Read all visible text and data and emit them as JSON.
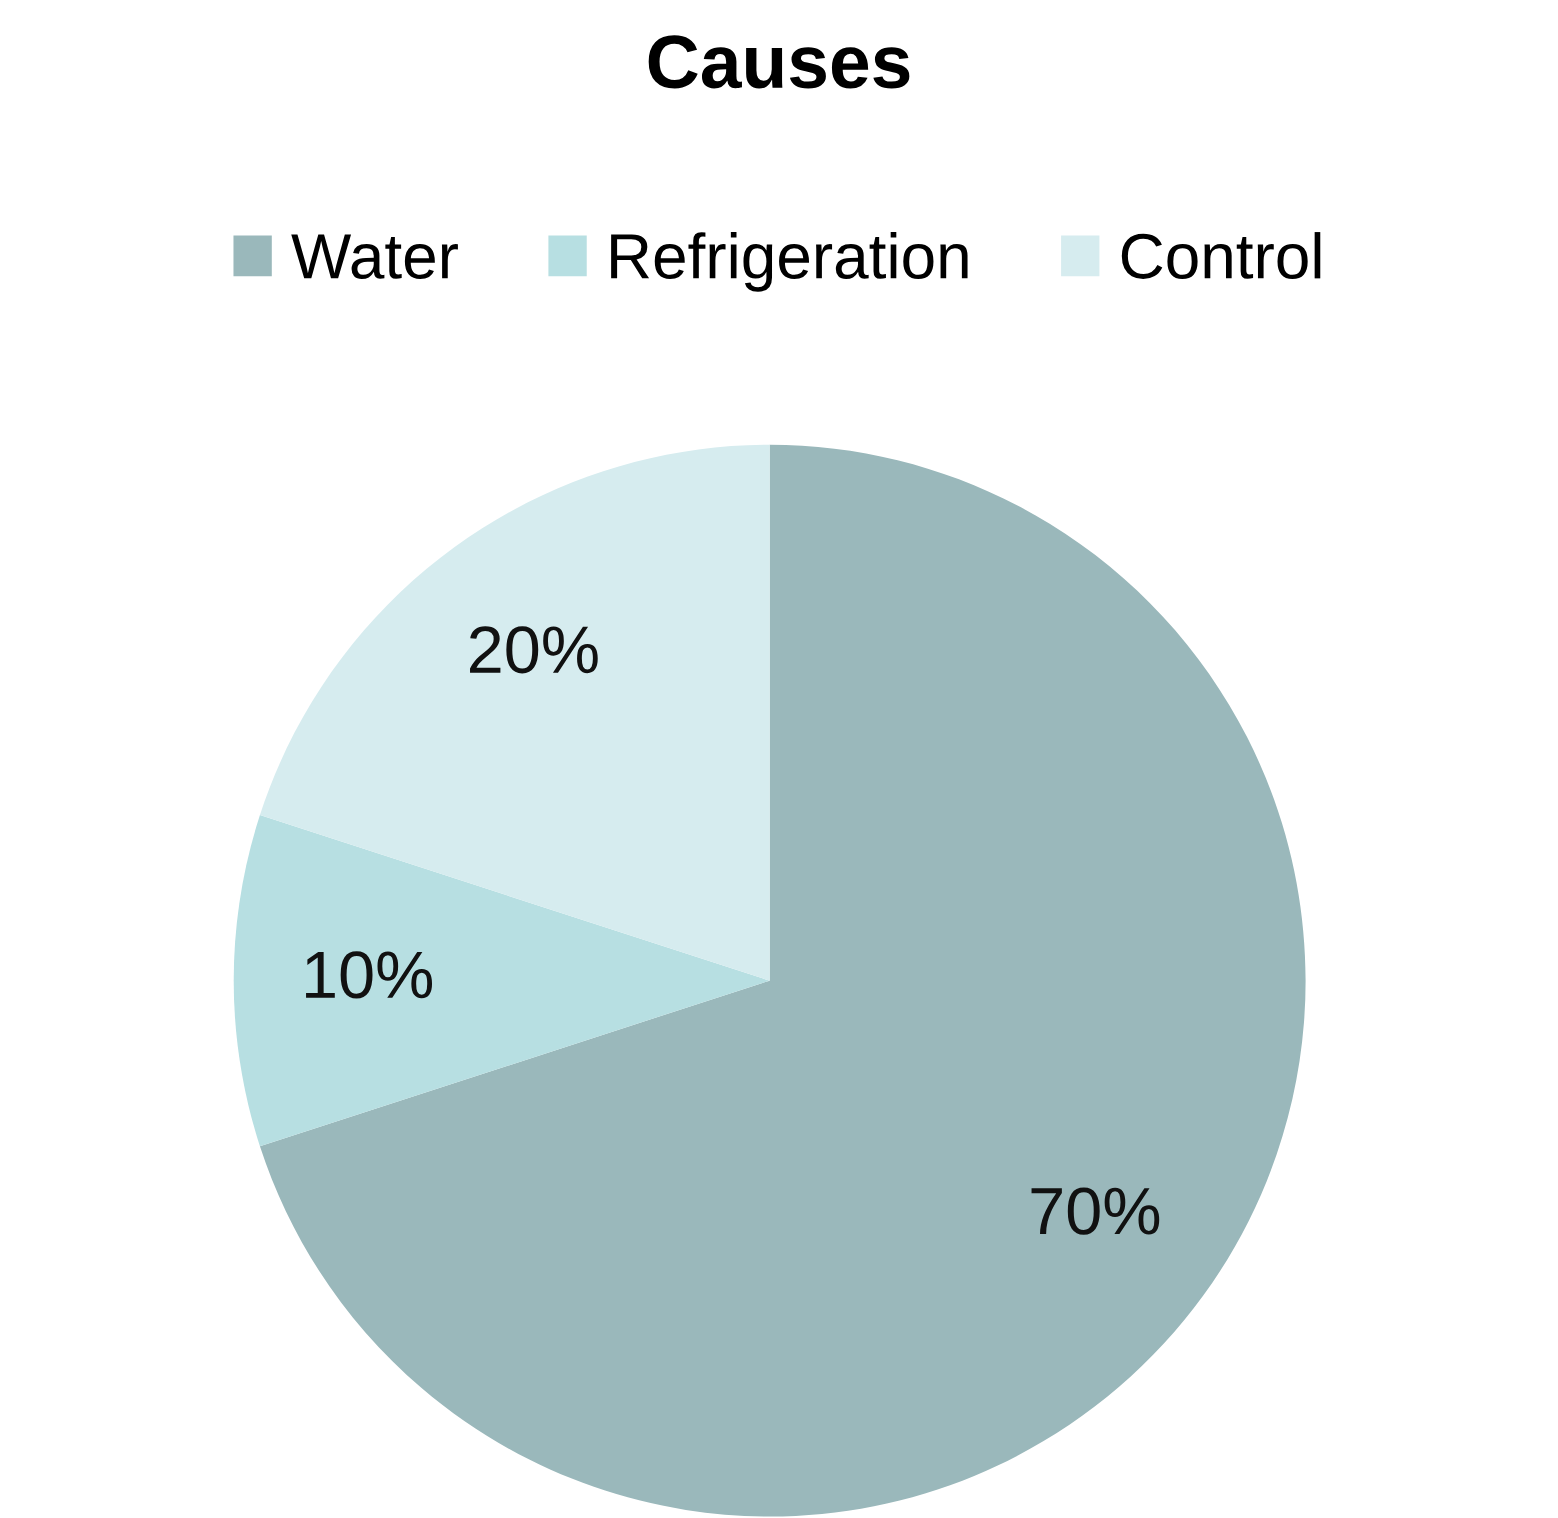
{
  "chart_data": {
    "type": "pie",
    "title": "Causes",
    "categories": [
      "Water",
      "Refrigeration",
      "Control"
    ],
    "values": [
      70,
      10,
      20
    ],
    "colors": [
      "#9ab8bb",
      "#b7dfe2",
      "#d6ecef"
    ],
    "value_labels": [
      "70%",
      "10%",
      "20%"
    ],
    "legend": "top"
  }
}
